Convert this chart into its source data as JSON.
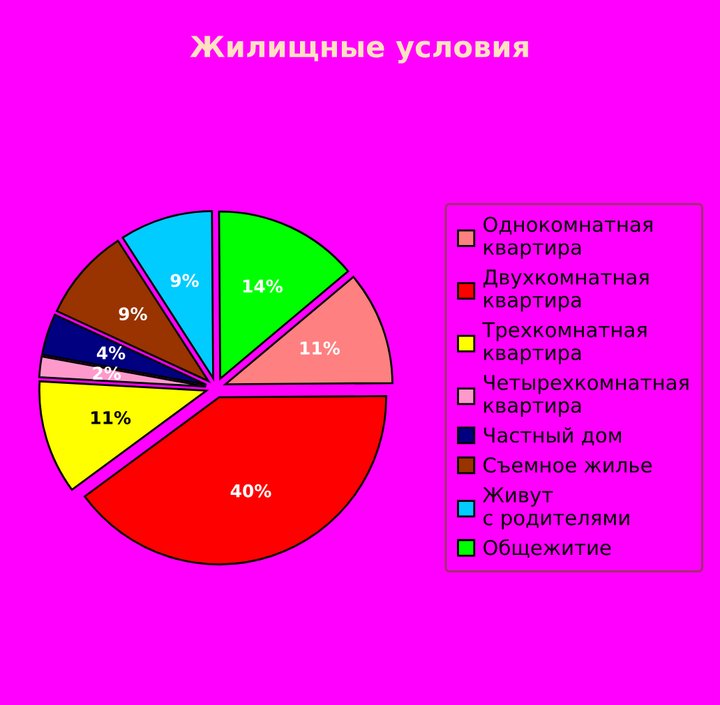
{
  "chart_data": {
    "type": "pie",
    "title": "Жилищные условия",
    "categories": [
      "Однокомнатная квартира",
      "Двухкомнатная квартира",
      "Трехкомнатная квартира",
      "Четырехкомнатная квартира",
      "Частный дом",
      "Съемное жилье",
      "Живут с родителями",
      "Общежитие"
    ],
    "values": [
      11,
      40,
      11,
      2,
      4,
      9,
      9,
      14
    ],
    "value_labels": [
      "11%",
      "40%",
      "11%",
      "2%",
      "4%",
      "9%",
      "9%",
      "14%"
    ],
    "colors": [
      "#ff8080",
      "#ff0000",
      "#ffff00",
      "#ff99cc",
      "#000080",
      "#993300",
      "#00ccff",
      "#00ff00"
    ],
    "legend": "right"
  }
}
